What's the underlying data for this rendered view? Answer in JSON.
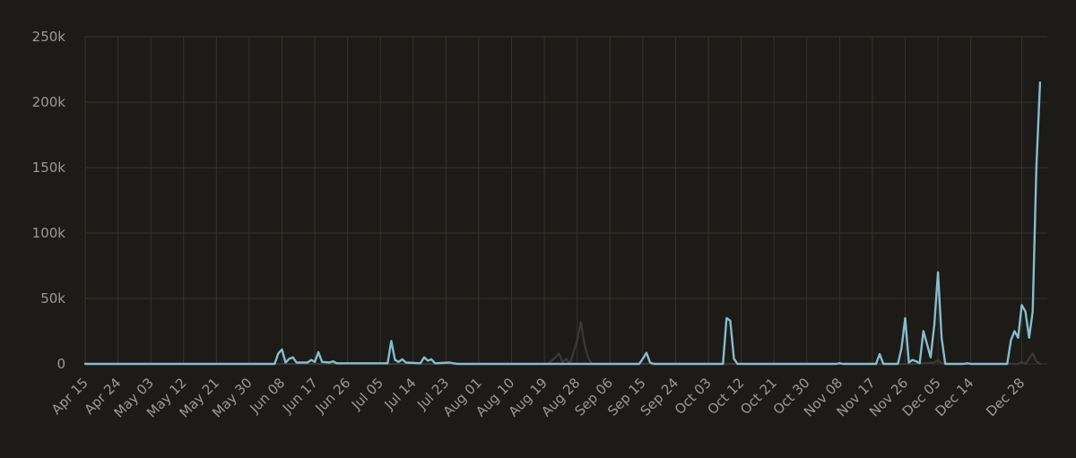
{
  "chart_data": {
    "type": "line",
    "title": "",
    "xlabel": "",
    "ylabel": "",
    "grid": true,
    "legend": "none",
    "colors": {
      "background": "#1c1b17",
      "grid": "#34332e",
      "tick_text": "#9a9a96",
      "primary": "#86bccb",
      "secondary": "#3a3935"
    },
    "ylim": [
      0,
      250000
    ],
    "y_ticks": [
      {
        "value": 0,
        "label": "0"
      },
      {
        "value": 50000,
        "label": "50k"
      },
      {
        "value": 100000,
        "label": "100k"
      },
      {
        "value": 150000,
        "label": "150k"
      },
      {
        "value": 200000,
        "label": "200k"
      },
      {
        "value": 250000,
        "label": "250k"
      }
    ],
    "xlim": [
      "Apr 15",
      "Jan 04"
    ],
    "x_ticks": [
      "Apr 15",
      "Apr 24",
      "May 03",
      "May 12",
      "May 21",
      "May 30",
      "Jun 08",
      "Jun 17",
      "Jun 26",
      "Jul 05",
      "Jul 14",
      "Jul 23",
      "Aug 01",
      "Aug 10",
      "Aug 19",
      "Aug 28",
      "Sep 06",
      "Sep 15",
      "Sep 24",
      "Oct 03",
      "Oct 12",
      "Oct 21",
      "Oct 30",
      "Nov 08",
      "Nov 17",
      "Nov 26",
      "Dec 05",
      "Dec 14",
      "Dec 28"
    ],
    "series": [
      {
        "color": "#86bccb",
        "points": [
          [
            "Apr 15",
            0
          ],
          [
            "May 25",
            0
          ],
          [
            "Jun 6",
            0
          ],
          [
            "Jun 7",
            8000
          ],
          [
            "Jun 8",
            11000
          ],
          [
            "Jun 9",
            1000
          ],
          [
            "Jun 10",
            4000
          ],
          [
            "Jun 11",
            5000
          ],
          [
            "Jun 12",
            1000
          ],
          [
            "Jun 15",
            1000
          ],
          [
            "Jun 16",
            3000
          ],
          [
            "Jun 17",
            1500
          ],
          [
            "Jun 18",
            9000
          ],
          [
            "Jun 19",
            1500
          ],
          [
            "Jun 21",
            1000
          ],
          [
            "Jun 22",
            2000
          ],
          [
            "Jun 23",
            500
          ],
          [
            "Jul 7",
            500
          ],
          [
            "Jul 8",
            17500
          ],
          [
            "Jul 9",
            3000
          ],
          [
            "Jul 10",
            1500
          ],
          [
            "Jul 11",
            3500
          ],
          [
            "Jul 12",
            1000
          ],
          [
            "Jul 16",
            500
          ],
          [
            "Jul 17",
            5000
          ],
          [
            "Jul 18",
            2500
          ],
          [
            "Jul 19",
            3500
          ],
          [
            "Jul 20",
            500
          ],
          [
            "Jul 24",
            1000
          ],
          [
            "Jul 25",
            500
          ],
          [
            "Jul 26",
            0
          ],
          [
            "Sep 14",
            0
          ],
          [
            "Sep 15",
            4000
          ],
          [
            "Sep 16",
            8500
          ],
          [
            "Sep 17",
            1000
          ],
          [
            "Sep 18",
            0
          ],
          [
            "Oct 7",
            0
          ],
          [
            "Oct 8",
            35000
          ],
          [
            "Oct 9",
            33000
          ],
          [
            "Oct 10",
            4000
          ],
          [
            "Oct 11",
            0
          ],
          [
            "Nov 7",
            0
          ],
          [
            "Nov 8",
            500
          ],
          [
            "Nov 9",
            0
          ],
          [
            "Nov 18",
            0
          ],
          [
            "Nov 19",
            7500
          ],
          [
            "Nov 20",
            0
          ],
          [
            "Nov 24",
            0
          ],
          [
            "Nov 25",
            12000
          ],
          [
            "Nov 26",
            35000
          ],
          [
            "Nov 27",
            1000
          ],
          [
            "Nov 28",
            3000
          ],
          [
            "Nov 29",
            2000
          ],
          [
            "Nov 30",
            500
          ],
          [
            "Dec 1",
            25000
          ],
          [
            "Dec 2",
            15000
          ],
          [
            "Dec 3",
            5000
          ],
          [
            "Dec 4",
            30000
          ],
          [
            "Dec 5",
            70000
          ],
          [
            "Dec 6",
            20000
          ],
          [
            "Dec 7",
            0
          ],
          [
            "Dec 12",
            0
          ],
          [
            "Dec 13",
            500
          ],
          [
            "Dec 14",
            0
          ],
          [
            "Dec 24",
            0
          ],
          [
            "Dec 25",
            18000
          ],
          [
            "Dec 26",
            25000
          ],
          [
            "Dec 27",
            20000
          ],
          [
            "Dec 28",
            45000
          ],
          [
            "Dec 29",
            40000
          ],
          [
            "Dec 30",
            20000
          ],
          [
            "Dec 31",
            40000
          ],
          [
            "Jan 1",
            150000
          ],
          [
            "Jan 2",
            215000
          ]
        ]
      },
      {
        "color": "#3a3935",
        "points": [
          [
            "Apr 15",
            0
          ],
          [
            "Aug 20",
            0
          ],
          [
            "Aug 22",
            5000
          ],
          [
            "Aug 23",
            8000
          ],
          [
            "Aug 24",
            1000
          ],
          [
            "Aug 25",
            4000
          ],
          [
            "Aug 26",
            0
          ],
          [
            "Aug 28",
            18000
          ],
          [
            "Aug 29",
            32000
          ],
          [
            "Aug 30",
            15000
          ],
          [
            "Aug 31",
            5000
          ],
          [
            "Sep 1",
            0
          ],
          [
            "Nov 28",
            0
          ],
          [
            "Dec 4",
            1000
          ],
          [
            "Dec 5",
            3000
          ],
          [
            "Dec 6",
            500
          ],
          [
            "Dec 7",
            0
          ],
          [
            "Dec 27",
            0
          ],
          [
            "Dec 28",
            1500
          ],
          [
            "Dec 29",
            0
          ],
          [
            "Dec 31",
            8000
          ],
          [
            "Jan 1",
            2000
          ],
          [
            "Jan 2",
            0
          ]
        ]
      }
    ]
  }
}
